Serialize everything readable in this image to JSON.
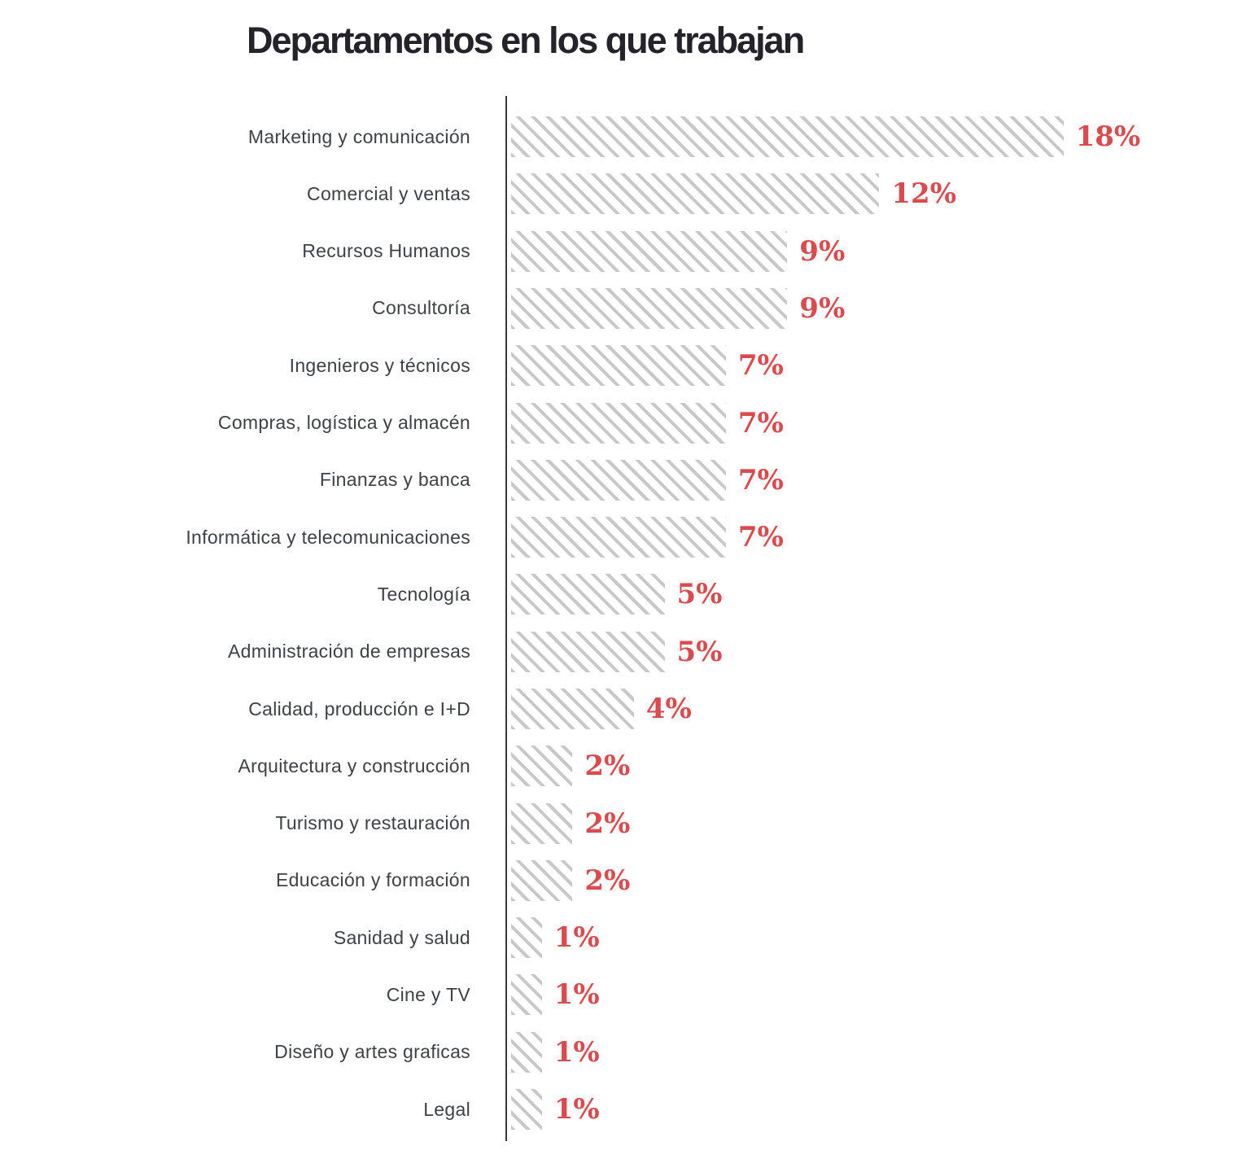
{
  "title": "Departamentos en los que trabajan",
  "colors": {
    "title_text": "#232329",
    "category_text": "#3e4145",
    "value_text": "#db4a4d",
    "bar_hatch": "#c8c8c8",
    "axis_line": "#38383a",
    "background": "#ffffff"
  },
  "chart_data": {
    "type": "bar",
    "orientation": "horizontal",
    "title": "Departamentos en los que trabajan",
    "xlabel": "",
    "ylabel": "",
    "unit": "%",
    "xlim": [
      0,
      18
    ],
    "grid": false,
    "legend": false,
    "bar_style": "diagonal-hatch",
    "categories": [
      "Marketing y comunicación",
      "Comercial y ventas",
      "Recursos Humanos",
      "Consultoría",
      "Ingenieros y técnicos",
      "Compras, logística y almacén",
      "Finanzas y banca",
      "Informática y telecomunicaciones",
      "Tecnología",
      "Administración de empresas",
      "Calidad, producción e I+D",
      "Arquitectura y construcción",
      "Turismo y restauración",
      "Educación y formación",
      "Sanidad y salud",
      "Cine y TV",
      "Diseño y artes graficas",
      "Legal"
    ],
    "values": [
      18,
      12,
      9,
      9,
      7,
      7,
      7,
      7,
      5,
      5,
      4,
      2,
      2,
      2,
      1,
      1,
      1,
      1
    ],
    "value_labels": [
      "18%",
      "12%",
      "9%",
      "9%",
      "7%",
      "7%",
      "7%",
      "7%",
      "5%",
      "5%",
      "4%",
      "2%",
      "2%",
      "2%",
      "1%",
      "1%",
      "1%",
      "1%"
    ]
  }
}
